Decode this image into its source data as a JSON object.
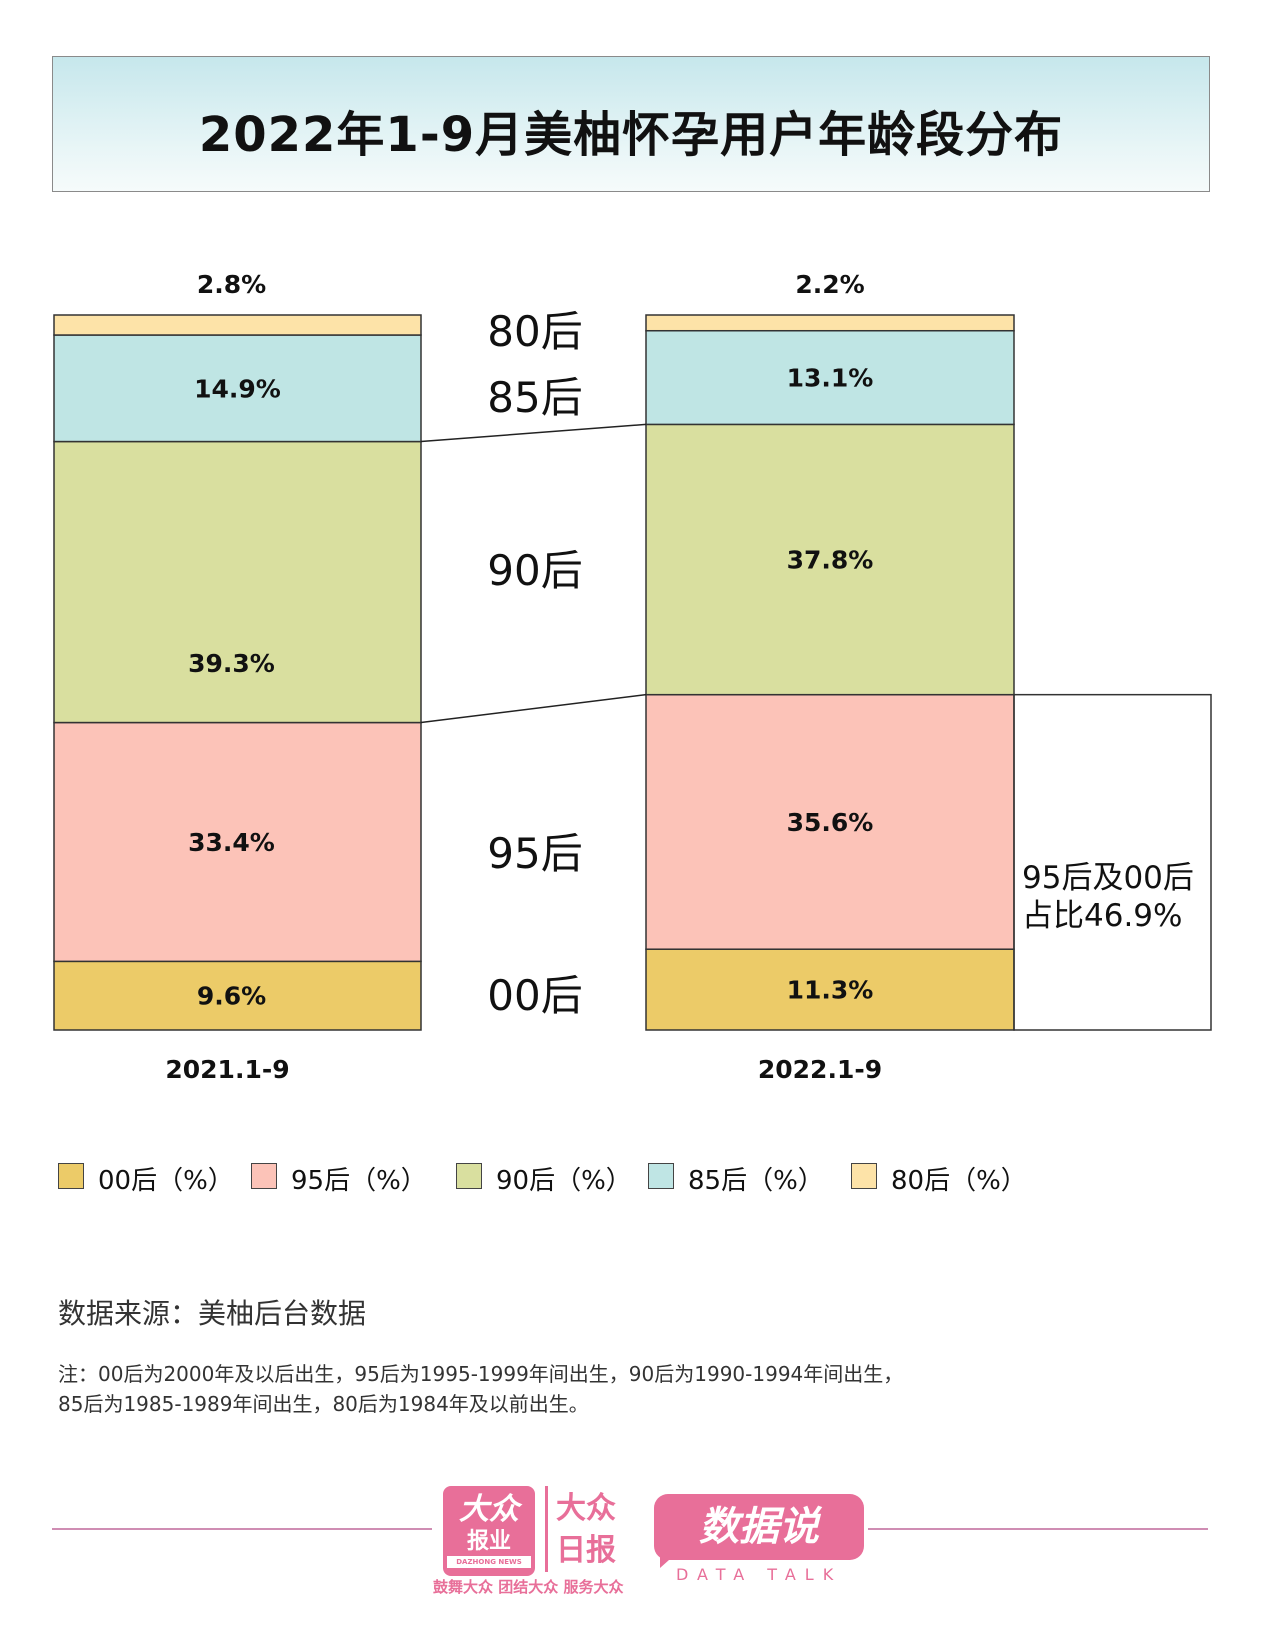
{
  "title": "2022年1-9月美柚怀孕用户年龄段分布",
  "chart_data": {
    "type": "bar",
    "stacked": true,
    "categories": [
      "2021.1-9",
      "2022.1-9"
    ],
    "series": [
      {
        "name": "00后（%）",
        "color": "#eccb68",
        "values": [
          9.6,
          11.3
        ],
        "labels": [
          "9.6%",
          "11.3%"
        ]
      },
      {
        "name": "95后（%）",
        "color": "#fcc3b8",
        "values": [
          33.4,
          35.6
        ],
        "labels": [
          "33.4%",
          "35.6%"
        ]
      },
      {
        "name": "90后（%）",
        "color": "#d9df9f",
        "values": [
          39.3,
          37.8
        ],
        "labels": [
          "39.3%",
          "37.8%"
        ]
      },
      {
        "name": "85后（%）",
        "color": "#bfe5e4",
        "values": [
          14.9,
          13.1
        ],
        "labels": [
          "14.9%",
          "13.1%"
        ]
      },
      {
        "name": "80后（%）",
        "color": "#fde3a8",
        "values": [
          2.8,
          2.2
        ],
        "labels": [
          "2.8%",
          "2.2%"
        ]
      }
    ],
    "segment_names": [
      "00后",
      "95后",
      "90后",
      "85后",
      "80后"
    ],
    "annotation": {
      "line1": "95后及00后",
      "line2": "占比46.9%"
    },
    "legend_position": "bottom"
  },
  "source": "数据来源：美柚后台数据",
  "note_line1": "注：00后为2000年及以后出生，95后为1995-1999年间出生，90后为1990-1994年间出生，",
  "note_line2": "85后为1985-1989年间出生，80后为1984年及以前出生。",
  "footer": {
    "logo1_top": "大众",
    "logo1_bottom": "报业",
    "logo1_en": "DAZHONG NEWS",
    "logo2_line1": "大众",
    "logo2_line2": "日报",
    "slogan": "鼓舞大众 团结大众 服务大众",
    "logo3": "数据说",
    "logo3_en": "DATA TALK"
  }
}
